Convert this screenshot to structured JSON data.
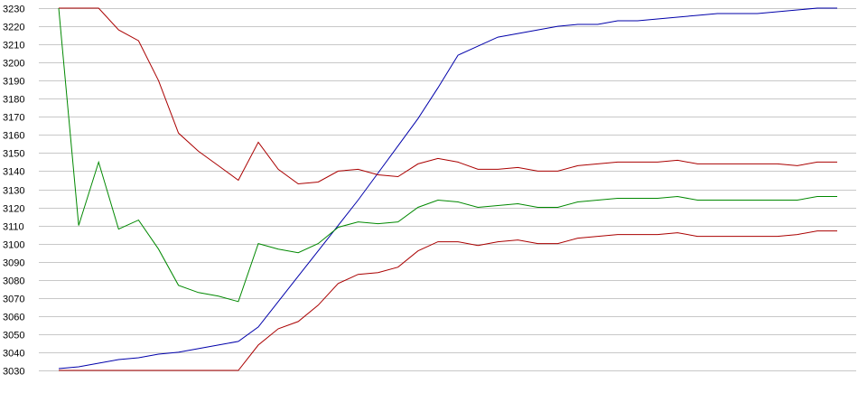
{
  "chart_data": {
    "type": "line",
    "title": "",
    "xlabel": "",
    "ylabel": "",
    "ylim": [
      3030,
      3230
    ],
    "yticks": [
      3230,
      3220,
      3210,
      3200,
      3190,
      3180,
      3170,
      3160,
      3150,
      3140,
      3130,
      3120,
      3110,
      3100,
      3090,
      3080,
      3070,
      3060,
      3050,
      3040,
      3030
    ],
    "grid": true,
    "legend": "none",
    "x": [
      0,
      1,
      2,
      3,
      4,
      5,
      6,
      7,
      8,
      9,
      10,
      11,
      12,
      13,
      14,
      15,
      16,
      17,
      18,
      19,
      20,
      21,
      22,
      23,
      24,
      25,
      26,
      27,
      28,
      29,
      30,
      31,
      32,
      33,
      34,
      35,
      36,
      37,
      38,
      39
    ],
    "series": [
      {
        "color": "#0000aa",
        "values": [
          3031,
          3032,
          3034,
          3036,
          3037,
          3039,
          3040,
          3042,
          3044,
          3046,
          3054,
          3068,
          3082,
          3096,
          3110,
          3124,
          3139,
          3154,
          3169,
          3186,
          3204,
          3209,
          3214,
          3216,
          3218,
          3220,
          3221,
          3221,
          3223,
          3223,
          3224,
          3225,
          3226,
          3227,
          3227,
          3227,
          3228,
          3229,
          3230,
          3230
        ]
      },
      {
        "color": "#aa0000",
        "values": [
          3230,
          3230,
          3230,
          3218,
          3212,
          3190,
          3161,
          3151,
          3143,
          3135,
          3156,
          3141,
          3133,
          3134,
          3140,
          3141,
          3138,
          3137,
          3144,
          3147,
          3145,
          3141,
          3141,
          3142,
          3140,
          3140,
          3143,
          3144,
          3145,
          3145,
          3145,
          3146,
          3144,
          3144,
          3144,
          3144,
          3144,
          3143,
          3145,
          3145
        ]
      },
      {
        "color": "#008800",
        "values": [
          3230,
          3110,
          3145,
          3108,
          3113,
          3097,
          3077,
          3073,
          3071,
          3068,
          3100,
          3097,
          3095,
          3100,
          3109,
          3112,
          3111,
          3112,
          3120,
          3124,
          3123,
          3120,
          3121,
          3122,
          3120,
          3120,
          3123,
          3124,
          3125,
          3125,
          3125,
          3126,
          3124,
          3124,
          3124,
          3124,
          3124,
          3124,
          3126,
          3126
        ]
      },
      {
        "color": "#aa0000",
        "values": [
          3030,
          3030,
          3030,
          3030,
          3030,
          3030,
          3030,
          3030,
          3030,
          3030,
          3044,
          3053,
          3057,
          3066,
          3078,
          3083,
          3084,
          3087,
          3096,
          3101,
          3101,
          3099,
          3101,
          3102,
          3100,
          3100,
          3103,
          3104,
          3105,
          3105,
          3105,
          3106,
          3104,
          3104,
          3104,
          3104,
          3104,
          3105,
          3107,
          3107
        ]
      }
    ]
  }
}
